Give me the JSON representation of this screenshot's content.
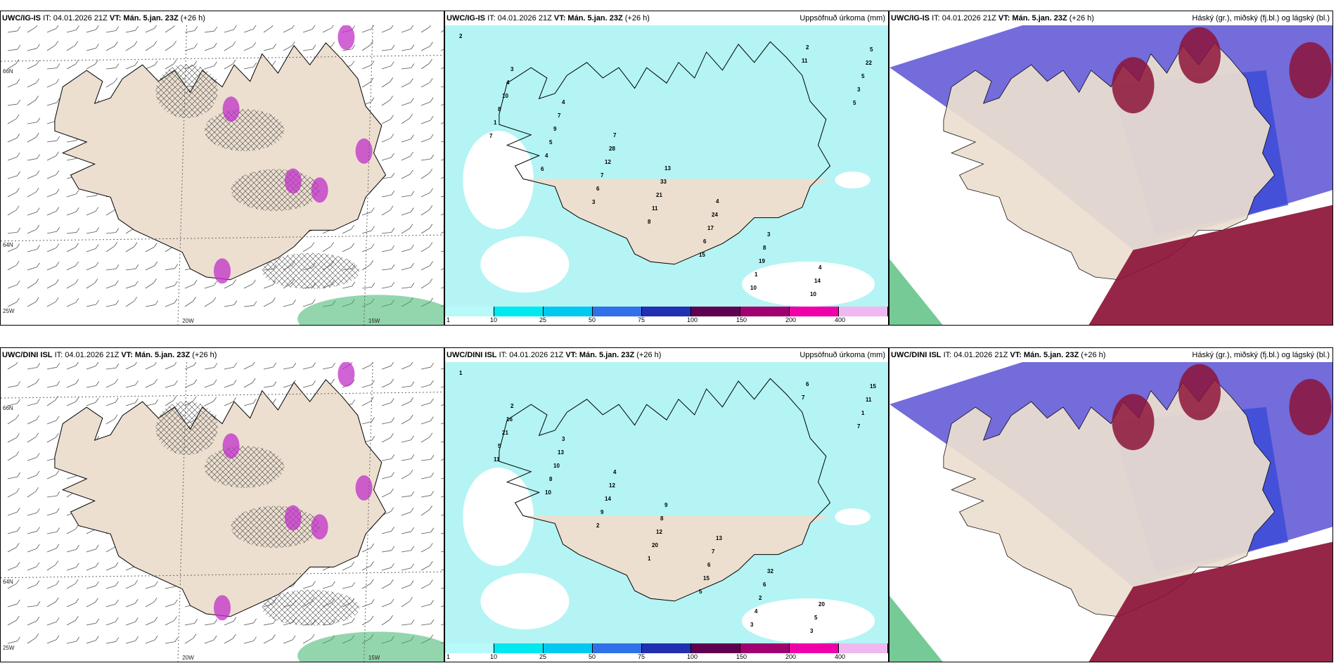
{
  "rows": [
    {
      "model": "UWC/IG-IS",
      "panels": [
        {
          "kind": "wind",
          "model": "UWC/IG-IS",
          "it": "IT: 04.01.2026 21Z",
          "vt_label": "VT:",
          "vt": "Mán. 5.jan. 23Z",
          "lead": "(+26 h)",
          "right": ""
        },
        {
          "kind": "precip",
          "model": "UWC/IG-IS",
          "it": "IT: 04.01.2026 21Z",
          "vt_label": "VT:",
          "vt": "Mán. 5.jan. 23Z",
          "lead": "(+26 h)",
          "right": "Uppsöfnuð úrkoma (mm)"
        },
        {
          "kind": "cloud",
          "model": "UWC/IG-IS",
          "it": "IT: 04.01.2026 21Z",
          "vt_label": "VT:",
          "vt": "Mán. 5.jan. 23Z",
          "lead": "(+26 h)",
          "right": "Háský (gr.), miðský (fj.bl.) og lágský (bl.)"
        }
      ],
      "axis": {
        "lat_top": "66N",
        "lat_mid": "64N",
        "lon_left": "25W",
        "lon_a": "20W",
        "lon_b": "15W"
      },
      "precip_values": [
        "2",
        "3",
        "4",
        "7",
        "13",
        "4",
        "3",
        "4",
        "5",
        "4",
        "7",
        "28",
        "33",
        "24",
        "8",
        "14",
        "22",
        "10",
        "9",
        "12",
        "21",
        "17",
        "19",
        "10",
        "5",
        "8",
        "5",
        "7",
        "11",
        "6",
        "1",
        "2",
        "3",
        "1",
        "4",
        "6",
        "8",
        "15",
        "10",
        "11",
        "5",
        "7",
        "6",
        "3"
      ]
    },
    {
      "model": "UWC/DINI ISL",
      "panels": [
        {
          "kind": "wind",
          "model": "UWC/DINI ISL",
          "it": "IT: 04.01.2026 21Z",
          "vt_label": "VT:",
          "vt": "Mán. 5.jan. 23Z",
          "lead": "(+26 h)",
          "right": ""
        },
        {
          "kind": "precip",
          "model": "UWC/DINI ISL",
          "it": "IT: 04.01.2026 21Z",
          "vt_label": "VT:",
          "vt": "Mán. 5.jan. 23Z",
          "lead": "(+26 h)",
          "right": "Uppsöfnuð úrkoma (mm)"
        },
        {
          "kind": "cloud",
          "model": "UWC/DINI ISL",
          "it": "IT: 04.01.2026 21Z",
          "vt_label": "VT:",
          "vt": "Mán. 5.jan. 23Z",
          "lead": "(+26 h)",
          "right": "Háský (gr.), miðský (fj.bl.) og lágský (bl.)"
        }
      ],
      "axis": {
        "lat_top": "66N",
        "lat_mid": "64N",
        "lon_left": "25W",
        "lon_a": "20W",
        "lon_b": "15W"
      },
      "precip_values": [
        "1",
        "2",
        "3",
        "4",
        "9",
        "13",
        "32",
        "20",
        "15",
        "16",
        "13",
        "12",
        "8",
        "7",
        "6",
        "5",
        "11",
        "21",
        "10",
        "14",
        "12",
        "6",
        "2",
        "3",
        "1",
        "5",
        "8",
        "9",
        "20",
        "15",
        "4",
        "6",
        "7",
        "11",
        "10",
        "2",
        "1",
        "5",
        "3",
        "7"
      ]
    }
  ],
  "colorbar": {
    "ticks": [
      "1",
      "10",
      "25",
      "50",
      "75",
      "100",
      "150",
      "200",
      "400"
    ],
    "colors": [
      "#b8fafa",
      "#00e8f0",
      "#00c8f0",
      "#3070e8",
      "#2030b0",
      "#600050",
      "#a00070",
      "#f000a8",
      "#f0b8f0"
    ]
  },
  "colors": {
    "land": "#ecdfd0",
    "sea_precip": "#b4f4f4",
    "hi": "#6c64d8",
    "mid": "#3a4ad8",
    "low": "#8c1438",
    "green": "#3ab46a",
    "magenta": "#c030c8"
  }
}
